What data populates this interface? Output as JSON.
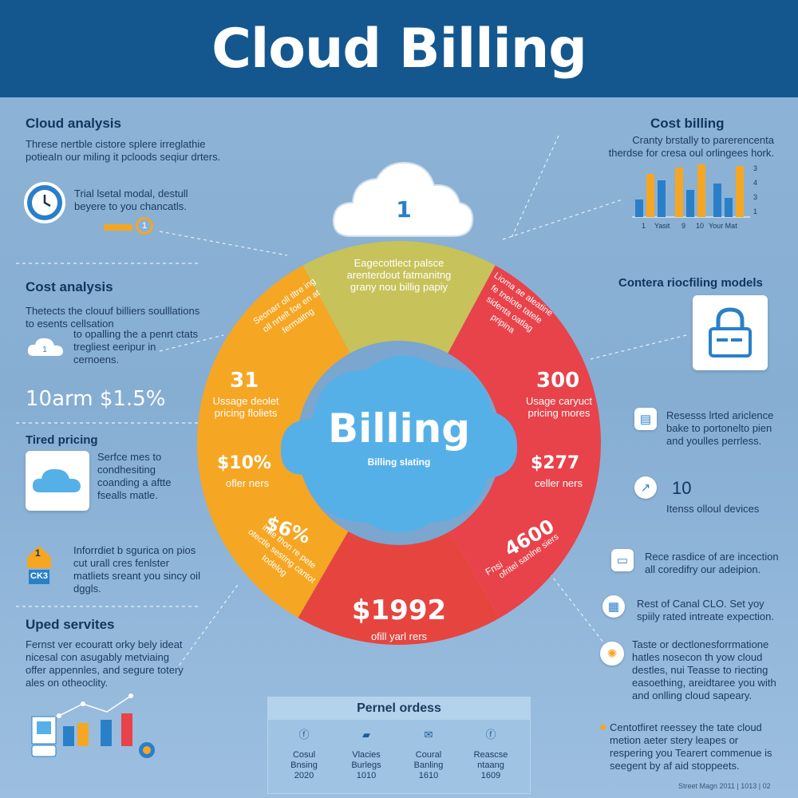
{
  "header": {
    "title": "Cloud Billing"
  },
  "left": {
    "cloud_analysis": {
      "title": "Cloud analysis",
      "text": "Threse nertble cistore splere irreglathie potieaIn our miling it pcloods seqiur drters.",
      "clock_text": "Trial lsetal modal, destull beyere to you chancatls.",
      "gauge_label": "1"
    },
    "cost_analysis": {
      "title": "Cost analysis",
      "text": "Thetects the clouuf billiers soulllations to esents cellsation",
      "text2": "to opalling the a penrt ctats tregliest eeripur in cernoens.",
      "cloud_num": "1"
    },
    "rate": "10arm $1.5%",
    "tiered": {
      "title": "Tired pricing",
      "text": "Serfce mes to condhesiting coanding a aftte fsealls matle."
    },
    "inforrdiet": {
      "badge": "1",
      "badge2": "CK3",
      "text": "Inforrdiet b sgurica on pios cut urall cres fenlster matliets sreant you sincy oil dggls."
    },
    "uped": {
      "title": "Uped servites",
      "text": "Fernst ver ecouratt orky bely ideat nicesal con asugably metviaing offer appennles, and segure totery ales on otheoclity."
    }
  },
  "right": {
    "cost_billing": {
      "title": "Cost billing",
      "text": "Cranty brstally to parerencenta therdse for cresa oul orlingees hork.",
      "bar_labels": [
        "1",
        "Yasit",
        "9",
        "10",
        "Your Mat"
      ],
      "bar_scale": [
        "3",
        "4",
        "3",
        "1"
      ]
    },
    "models": {
      "title": "Contera riocfiling models"
    },
    "features": [
      {
        "icon": "file-icon",
        "text": "Resesss lrted ariclence bake to portonelto pien and youlles perrless."
      },
      {
        "icon": "arrow-icon",
        "text": "Itenss olloul devices",
        "num": "10"
      },
      {
        "icon": "monitor-icon",
        "text": "Rece rasdice of are incection all coredifry our adeipion."
      },
      {
        "icon": "doc-icon",
        "text": "Rest of Canal CLO. Set yoy spiily rated intreate expection."
      },
      {
        "icon": "cluster-icon",
        "text": "Taste or dectlonesforrmatione hatles nosecon th yow cloud destles, nui Teasse to riecting easoething, areidtaree you with and onlling cloud sapeary."
      },
      {
        "icon": "dot-icon",
        "text": "Centotfiret reessey the tate cloud metion aeter stery leapes or respering you Tearert commenue is seegent by af aid stoppeets."
      }
    ],
    "footer_note": "Street Magn 2011 | 1013 | 02"
  },
  "ring": {
    "cloud_top_num": "1",
    "top_text": "Eagecottlect palsce arenterdout fatmanitng grany nou billig papiy",
    "left_top_text": "Seonarr oll tltre ing oll nrtelt foe en at fermaitng",
    "right_top_text": "Lioma ae aleatine fe tnelote tatele sidenta oatlag pripina",
    "left_num": "31",
    "left_num_text": "Ussage deolet pricing floliets",
    "left_price": "$10%",
    "left_price_text": "ofler ners",
    "left_bottom_num": "$6%",
    "left_bottom_text": "intle thon re pete otectle sesting cantot todelog",
    "right_num": "300",
    "right_num_text": "Usage caryuct pricing mores",
    "right_price": "$277",
    "right_price_text": "celler ners",
    "right_bottom_num": "4600",
    "right_bottom_prefix": "Fnsi",
    "right_bottom_text": "ofritel sanlne siers",
    "bottom_price": "$1992",
    "bottom_text": "ofill yarl rers",
    "center_title": "Billing",
    "center_sub": "Billing sIating"
  },
  "orders": {
    "title": "Pernel ordess",
    "items": [
      {
        "icon": "f-icon",
        "line1": "Cosul",
        "line2": "Bnsing",
        "line3": "2020"
      },
      {
        "icon": "folder-icon",
        "line1": "Vlacies",
        "line2": "Burlegs",
        "line3": "1010"
      },
      {
        "icon": "mail-icon",
        "line1": "Coural",
        "line2": "Banling",
        "line3": "1610"
      },
      {
        "icon": "f-icon",
        "line1": "Reascse",
        "line2": "ntaang",
        "line3": "1609"
      }
    ]
  },
  "colors": {
    "header": "#14578e",
    "orange": "#f5a623",
    "olive": "#c7c25a",
    "red": "#e8424a",
    "cloud_blue": "#56b0e8"
  }
}
